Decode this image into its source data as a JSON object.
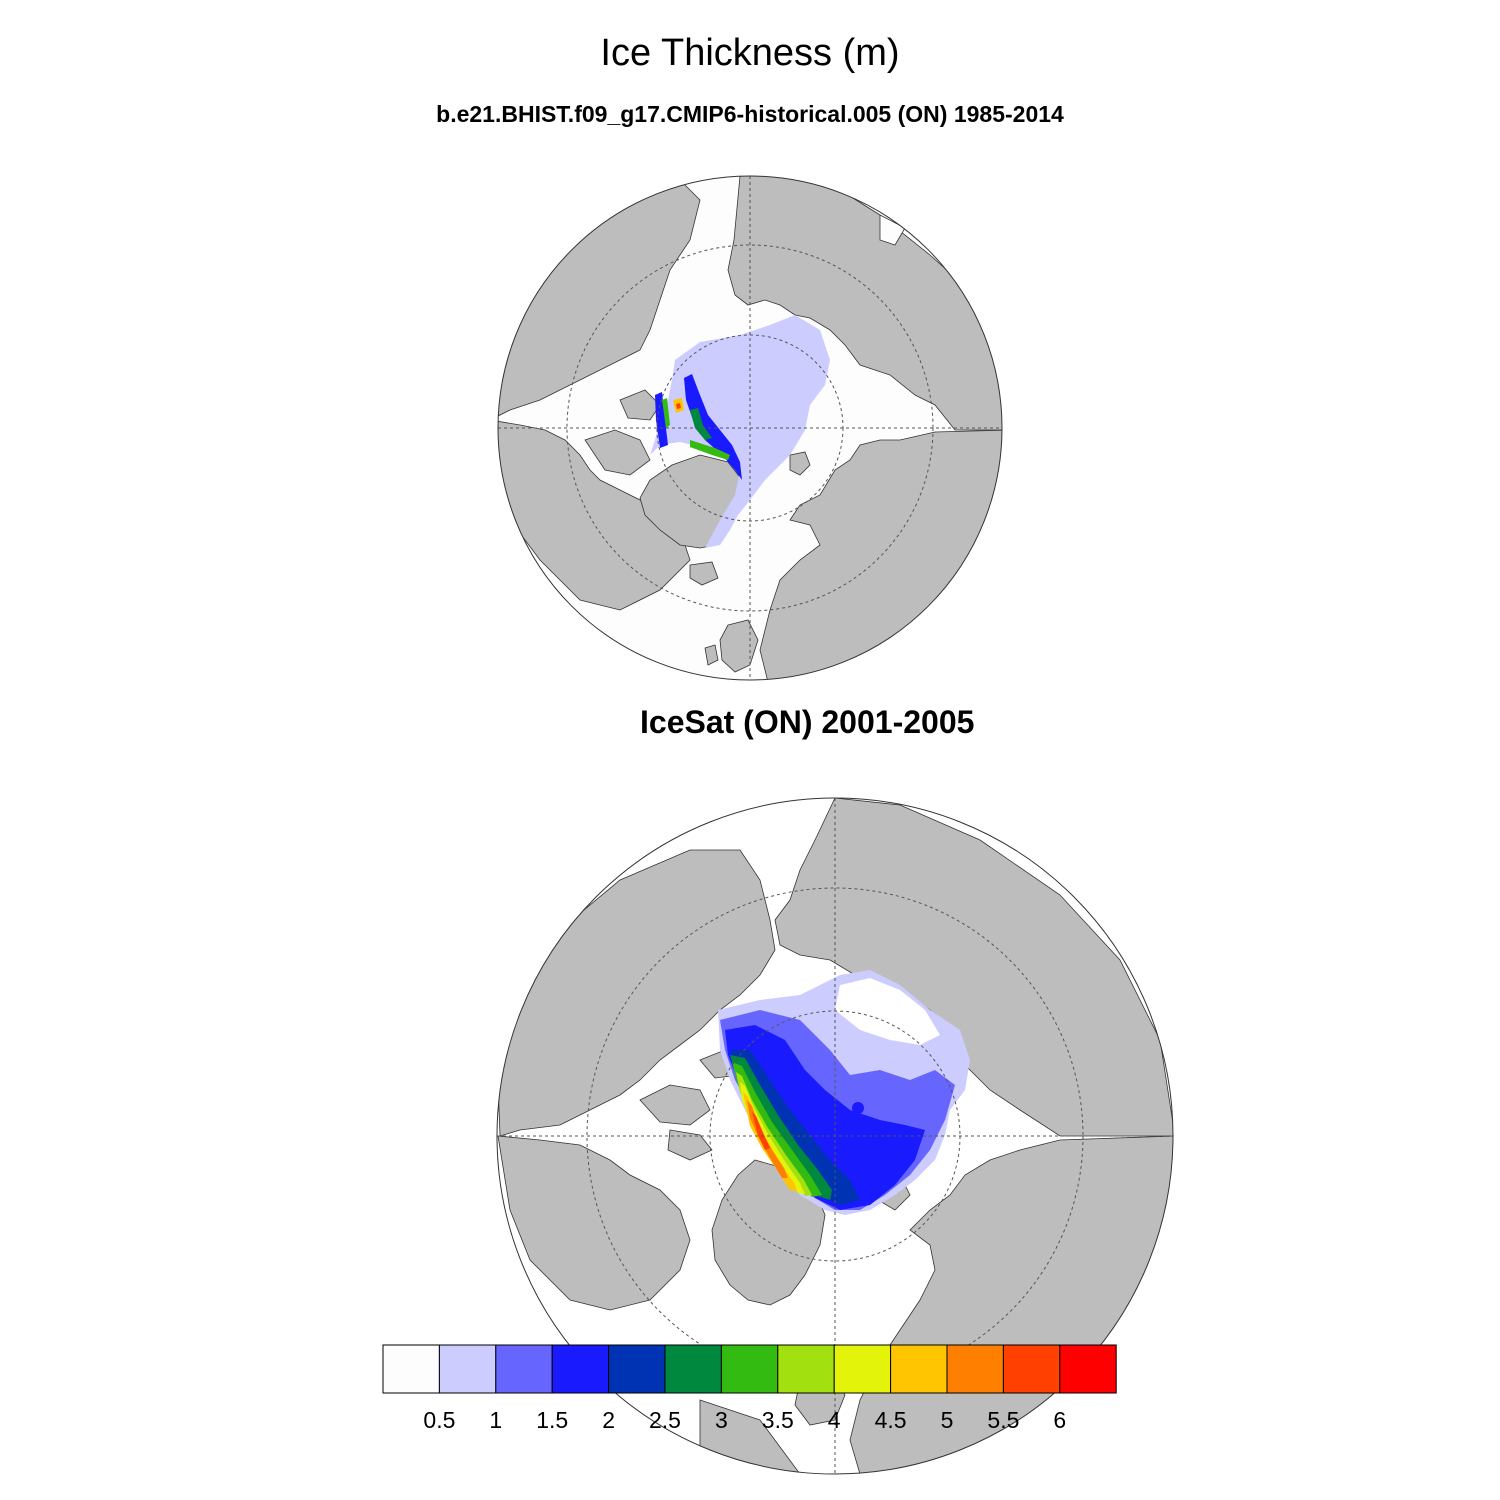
{
  "title": "Ice Thickness (m)",
  "panels": [
    {
      "subtitle": "b.e21.BHIST.f09_g17.CMIP6-historical.005 (ON) 1985-2014"
    },
    {
      "subtitle": "IceSat (ON) 2001-2005"
    }
  ],
  "colors": {
    "land": "#bdbdbd",
    "ocean": "#fdfdfd",
    "grid": "#555555"
  },
  "colorbar": {
    "levels": [
      "0.5",
      "1",
      "1.5",
      "2",
      "2.5",
      "3",
      "3.5",
      "4",
      "4.5",
      "5",
      "5.5",
      "6"
    ],
    "colors": [
      "#fdfdfd",
      "#ccccff",
      "#6666ff",
      "#1a1aff",
      "#0033b3",
      "#00883f",
      "#33bb11",
      "#a3e00f",
      "#e4f30a",
      "#ffc500",
      "#ff8000",
      "#ff4000",
      "#ff0000"
    ]
  }
}
